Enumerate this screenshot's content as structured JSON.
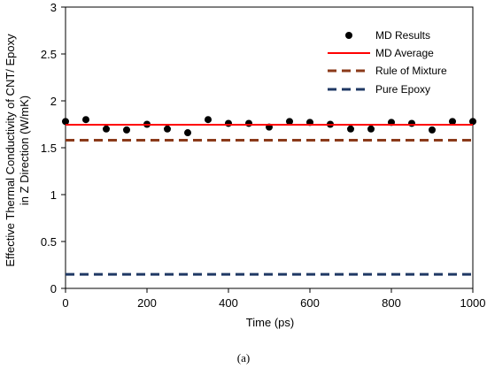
{
  "caption": "(a)",
  "chart_data": {
    "type": "scatter",
    "title": "",
    "xlabel": "Time (ps)",
    "ylabel_line1": "Effective Thermal Conductivity of CNT/ Epoxy",
    "ylabel_line2": "in Z Direction (W/mK)",
    "xlim": [
      0,
      1000
    ],
    "ylim": [
      0,
      3
    ],
    "xticks": [
      0,
      200,
      400,
      600,
      800,
      1000
    ],
    "yticks": [
      0,
      0.5,
      1,
      1.5,
      2,
      2.5,
      3
    ],
    "grid": false,
    "legend_position": "top-right",
    "series": [
      {
        "name": "MD Results",
        "kind": "points",
        "color": "#000000",
        "x": [
          0,
          50,
          100,
          150,
          200,
          250,
          300,
          350,
          400,
          450,
          500,
          550,
          600,
          650,
          700,
          750,
          800,
          850,
          900,
          950,
          1000
        ],
        "y": [
          1.78,
          1.8,
          1.7,
          1.69,
          1.75,
          1.7,
          1.66,
          1.8,
          1.76,
          1.76,
          1.72,
          1.78,
          1.77,
          1.75,
          1.7,
          1.7,
          1.77,
          1.76,
          1.69,
          1.78,
          1.78
        ]
      },
      {
        "name": "MD Average",
        "kind": "solid",
        "color": "#ff0000",
        "y": 1.745
      },
      {
        "name": "Rule of Mixture",
        "kind": "dashed",
        "color": "#8b3a1a",
        "y": 1.58
      },
      {
        "name": "Pure Epoxy",
        "kind": "dashed",
        "color": "#1f3864",
        "y": 0.15
      }
    ]
  }
}
